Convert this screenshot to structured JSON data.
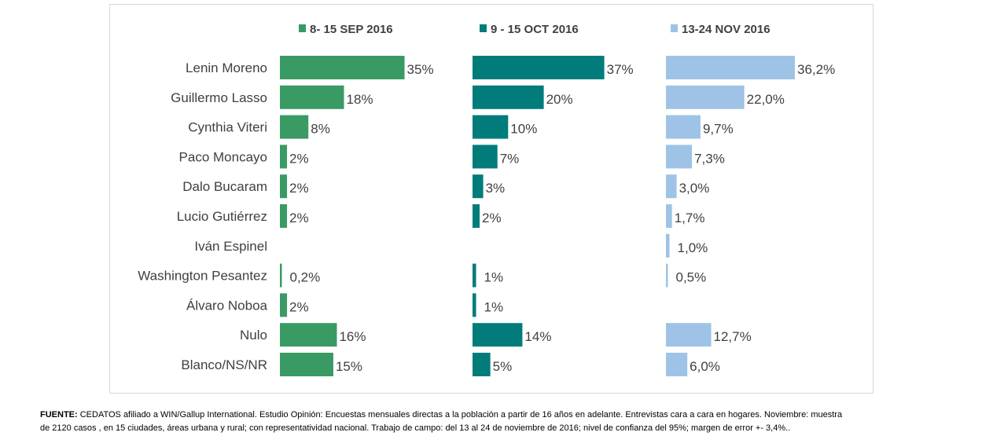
{
  "chart_data": {
    "type": "bar",
    "orientation": "horizontal",
    "layout": "small-multiples",
    "legend_position": "top",
    "grid": false,
    "categories": [
      "Lenin Moreno",
      "Guillermo Lasso",
      "Cynthia Viteri",
      "Paco Moncayo",
      "Dalo Bucaram",
      "Lucio Gutiérrez",
      "Iván Espinel",
      "Washington Pesantez",
      "Álvaro Noboa",
      "Nulo",
      "Blanco/NS/NR"
    ],
    "series": [
      {
        "name": "8- 15 SEP 2016",
        "color": "#3a9a63",
        "values": [
          35,
          18,
          8,
          2,
          2,
          2,
          null,
          0.2,
          2,
          16,
          15
        ],
        "labels": [
          "35%",
          "18%",
          "8%",
          "2%",
          "2%",
          "2%",
          "",
          "0,2%",
          "2%",
          "16%",
          "15%"
        ]
      },
      {
        "name": "9 - 15 OCT 2016",
        "color": "#017c7a",
        "values": [
          37,
          20,
          10,
          7,
          3,
          2,
          null,
          1,
          1,
          14,
          5
        ],
        "labels": [
          "37%",
          "20%",
          "10%",
          "7%",
          "3%",
          "2%",
          "",
          "1%",
          "1%",
          "14%",
          "5%"
        ]
      },
      {
        "name": "13-24 NOV 2016",
        "color": "#9ec3e6",
        "values": [
          36.2,
          22.0,
          9.7,
          7.3,
          3.0,
          1.7,
          1.0,
          0.5,
          null,
          12.7,
          6.0
        ],
        "labels": [
          "36,2%",
          "22,0%",
          "9,7%",
          "7,3%",
          "3,0%",
          "1,7%",
          "1,0%",
          "0,5%",
          "",
          "12,7%",
          "6,0%"
        ]
      }
    ]
  },
  "footnote": {
    "label": "FUENTE:",
    "line1": " CEDATOS afiliado a WIN/Gallup International. Estudio Opinión: Encuestas mensuales directas a la población a partir de 16 años en adelante. Entrevistas cara a cara en hogares. Noviembre: muestra",
    "line2": "de 2120 casos , en 15 ciudades, áreas urbana y rural; con representatividad nacional. Trabajo de campo: del 13 al 24 de noviembre de 2016; nivel de confianza del 95%; margen de error +- 3,4%.."
  }
}
